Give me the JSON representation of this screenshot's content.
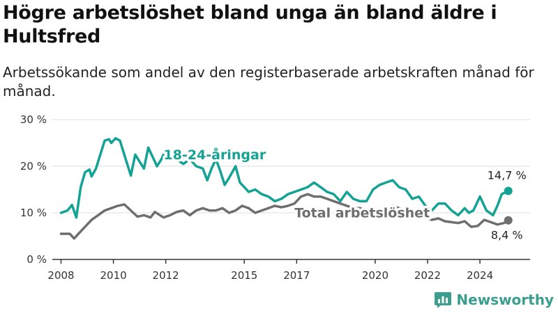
{
  "title": "Högre arbetslöshet bland unga än bland äldre i Hultsfred",
  "subtitle": "Arbetssökande som andel av den registerbaserade arbetskraften månad för månad.",
  "brand": {
    "name": "Newsworthy",
    "icon": "newsworthy-logo-icon",
    "color": "#3c9e8e"
  },
  "colors": {
    "youth": "#14a294",
    "total": "#6e6e6e",
    "grid": "#dddddd",
    "axis": "#333333"
  },
  "chart_data": {
    "type": "line",
    "title": "Högre arbetslöshet bland unga än bland äldre i Hultsfred",
    "subtitle": "Arbetssökande som andel av den registerbaserade arbetskraften månad för månad.",
    "xlabel": "",
    "ylabel": "",
    "x_ticks": [
      "2008",
      "2010",
      "2012",
      "2015",
      "2017",
      "2020",
      "2022",
      "2024"
    ],
    "y_ticks": [
      "0 %",
      "10 %",
      "20 %",
      "30 %"
    ],
    "xlim": [
      "2007-09",
      "2025-12"
    ],
    "ylim": [
      0,
      30
    ],
    "grid": true,
    "legend": "inline labels",
    "series": [
      {
        "name": "18-24-åringar",
        "end_label": "14,7 %",
        "points": [
          [
            "2008-01",
            10.0
          ],
          [
            "2008-04",
            10.5
          ],
          [
            "2008-06",
            11.7
          ],
          [
            "2008-08",
            9.0
          ],
          [
            "2008-10",
            15.5
          ],
          [
            "2008-12",
            18.7
          ],
          [
            "2009-02",
            19.3
          ],
          [
            "2009-03",
            17.8
          ],
          [
            "2009-05",
            19.5
          ],
          [
            "2009-07",
            22.5
          ],
          [
            "2009-09",
            25.5
          ],
          [
            "2009-11",
            25.8
          ],
          [
            "2009-12",
            25.0
          ],
          [
            "2010-02",
            26.0
          ],
          [
            "2010-04",
            25.5
          ],
          [
            "2010-06",
            22.5
          ],
          [
            "2010-09",
            18.0
          ],
          [
            "2010-11",
            22.5
          ],
          [
            "2011-01",
            21.0
          ],
          [
            "2011-03",
            19.5
          ],
          [
            "2011-05",
            24.0
          ],
          [
            "2011-07",
            22.0
          ],
          [
            "2011-09",
            20.0
          ],
          [
            "2011-11",
            21.5
          ],
          [
            "2012-01",
            23.5
          ],
          [
            "2012-03",
            22.5
          ],
          [
            "2012-06",
            21.5
          ],
          [
            "2012-09",
            20.5
          ],
          [
            "2012-12",
            21.5
          ],
          [
            "2013-03",
            20.0
          ],
          [
            "2013-06",
            19.5
          ],
          [
            "2013-08",
            17.0
          ],
          [
            "2013-10",
            19.5
          ],
          [
            "2013-12",
            21.5
          ],
          [
            "2014-02",
            19.0
          ],
          [
            "2014-04",
            16.0
          ],
          [
            "2014-06",
            17.5
          ],
          [
            "2014-09",
            20.0
          ],
          [
            "2014-11",
            16.5
          ],
          [
            "2015-01",
            15.5
          ],
          [
            "2015-03",
            14.5
          ],
          [
            "2015-06",
            15.0
          ],
          [
            "2015-09",
            14.0
          ],
          [
            "2015-12",
            13.5
          ],
          [
            "2016-03",
            12.5
          ],
          [
            "2016-06",
            13.0
          ],
          [
            "2016-09",
            14.0
          ],
          [
            "2016-12",
            14.5
          ],
          [
            "2017-03",
            15.0
          ],
          [
            "2017-06",
            15.5
          ],
          [
            "2017-09",
            16.5
          ],
          [
            "2017-12",
            15.5
          ],
          [
            "2018-03",
            14.5
          ],
          [
            "2018-06",
            14.0
          ],
          [
            "2018-09",
            12.5
          ],
          [
            "2018-12",
            14.5
          ],
          [
            "2019-03",
            13.0
          ],
          [
            "2019-06",
            12.5
          ],
          [
            "2019-09",
            12.5
          ],
          [
            "2019-12",
            15.0
          ],
          [
            "2020-03",
            16.0
          ],
          [
            "2020-06",
            16.5
          ],
          [
            "2020-09",
            17.0
          ],
          [
            "2020-12",
            15.5
          ],
          [
            "2021-03",
            15.0
          ],
          [
            "2021-06",
            13.0
          ],
          [
            "2021-09",
            13.5
          ],
          [
            "2021-12",
            11.5
          ],
          [
            "2022-03",
            10.5
          ],
          [
            "2022-06",
            12.0
          ],
          [
            "2022-09",
            12.0
          ],
          [
            "2022-12",
            10.5
          ],
          [
            "2023-03",
            9.5
          ],
          [
            "2023-06",
            11.0
          ],
          [
            "2023-08",
            10.0
          ],
          [
            "2023-10",
            10.5
          ],
          [
            "2024-01",
            13.5
          ],
          [
            "2024-04",
            10.5
          ],
          [
            "2024-07",
            9.5
          ],
          [
            "2024-09",
            11.5
          ],
          [
            "2024-11",
            14.0
          ],
          [
            "2025-02",
            14.7
          ]
        ]
      },
      {
        "name": "Total arbetslöshet",
        "end_label": "8,4 %",
        "points": [
          [
            "2008-01",
            5.5
          ],
          [
            "2008-05",
            5.5
          ],
          [
            "2008-07",
            4.5
          ],
          [
            "2008-09",
            5.5
          ],
          [
            "2008-12",
            7.0
          ],
          [
            "2009-03",
            8.5
          ],
          [
            "2009-06",
            9.5
          ],
          [
            "2009-09",
            10.5
          ],
          [
            "2009-12",
            11.0
          ],
          [
            "2010-03",
            11.5
          ],
          [
            "2010-06",
            11.8
          ],
          [
            "2010-09",
            10.5
          ],
          [
            "2010-12",
            9.2
          ],
          [
            "2011-03",
            9.5
          ],
          [
            "2011-06",
            9.0
          ],
          [
            "2011-08",
            10.2
          ],
          [
            "2011-12",
            9.0
          ],
          [
            "2012-03",
            9.5
          ],
          [
            "2012-06",
            10.2
          ],
          [
            "2012-09",
            10.5
          ],
          [
            "2012-12",
            9.5
          ],
          [
            "2013-03",
            10.5
          ],
          [
            "2013-06",
            11.0
          ],
          [
            "2013-09",
            10.5
          ],
          [
            "2013-12",
            10.5
          ],
          [
            "2014-03",
            11.0
          ],
          [
            "2014-06",
            10.0
          ],
          [
            "2014-09",
            10.5
          ],
          [
            "2014-12",
            11.5
          ],
          [
            "2015-03",
            11.0
          ],
          [
            "2015-06",
            10.0
          ],
          [
            "2015-09",
            10.5
          ],
          [
            "2015-12",
            11.0
          ],
          [
            "2016-03",
            11.5
          ],
          [
            "2016-06",
            11.2
          ],
          [
            "2016-09",
            11.5
          ],
          [
            "2016-12",
            12.0
          ],
          [
            "2017-03",
            13.5
          ],
          [
            "2017-06",
            14.0
          ],
          [
            "2017-09",
            13.5
          ],
          [
            "2017-12",
            13.5
          ],
          [
            "2018-03",
            13.0
          ],
          [
            "2018-06",
            12.5
          ],
          [
            "2018-09",
            12.0
          ],
          [
            "2018-12",
            11.5
          ],
          [
            "2019-03",
            11.0
          ],
          [
            "2019-06",
            11.0
          ],
          [
            "2019-09",
            10.5
          ],
          [
            "2019-12",
            10.5
          ],
          [
            "2020-03",
            10.5
          ],
          [
            "2020-06",
            11.0
          ],
          [
            "2020-09",
            11.5
          ],
          [
            "2020-12",
            11.0
          ],
          [
            "2021-03",
            10.5
          ],
          [
            "2021-06",
            10.0
          ],
          [
            "2021-09",
            9.5
          ],
          [
            "2021-12",
            9.0
          ],
          [
            "2022-03",
            8.5
          ],
          [
            "2022-06",
            8.8
          ],
          [
            "2022-09",
            8.2
          ],
          [
            "2022-12",
            8.0
          ],
          [
            "2023-03",
            7.8
          ],
          [
            "2023-06",
            8.2
          ],
          [
            "2023-09",
            7.0
          ],
          [
            "2023-12",
            7.2
          ],
          [
            "2024-03",
            8.5
          ],
          [
            "2024-06",
            8.0
          ],
          [
            "2024-09",
            7.5
          ],
          [
            "2024-12",
            7.8
          ],
          [
            "2025-02",
            8.4
          ]
        ]
      }
    ]
  }
}
